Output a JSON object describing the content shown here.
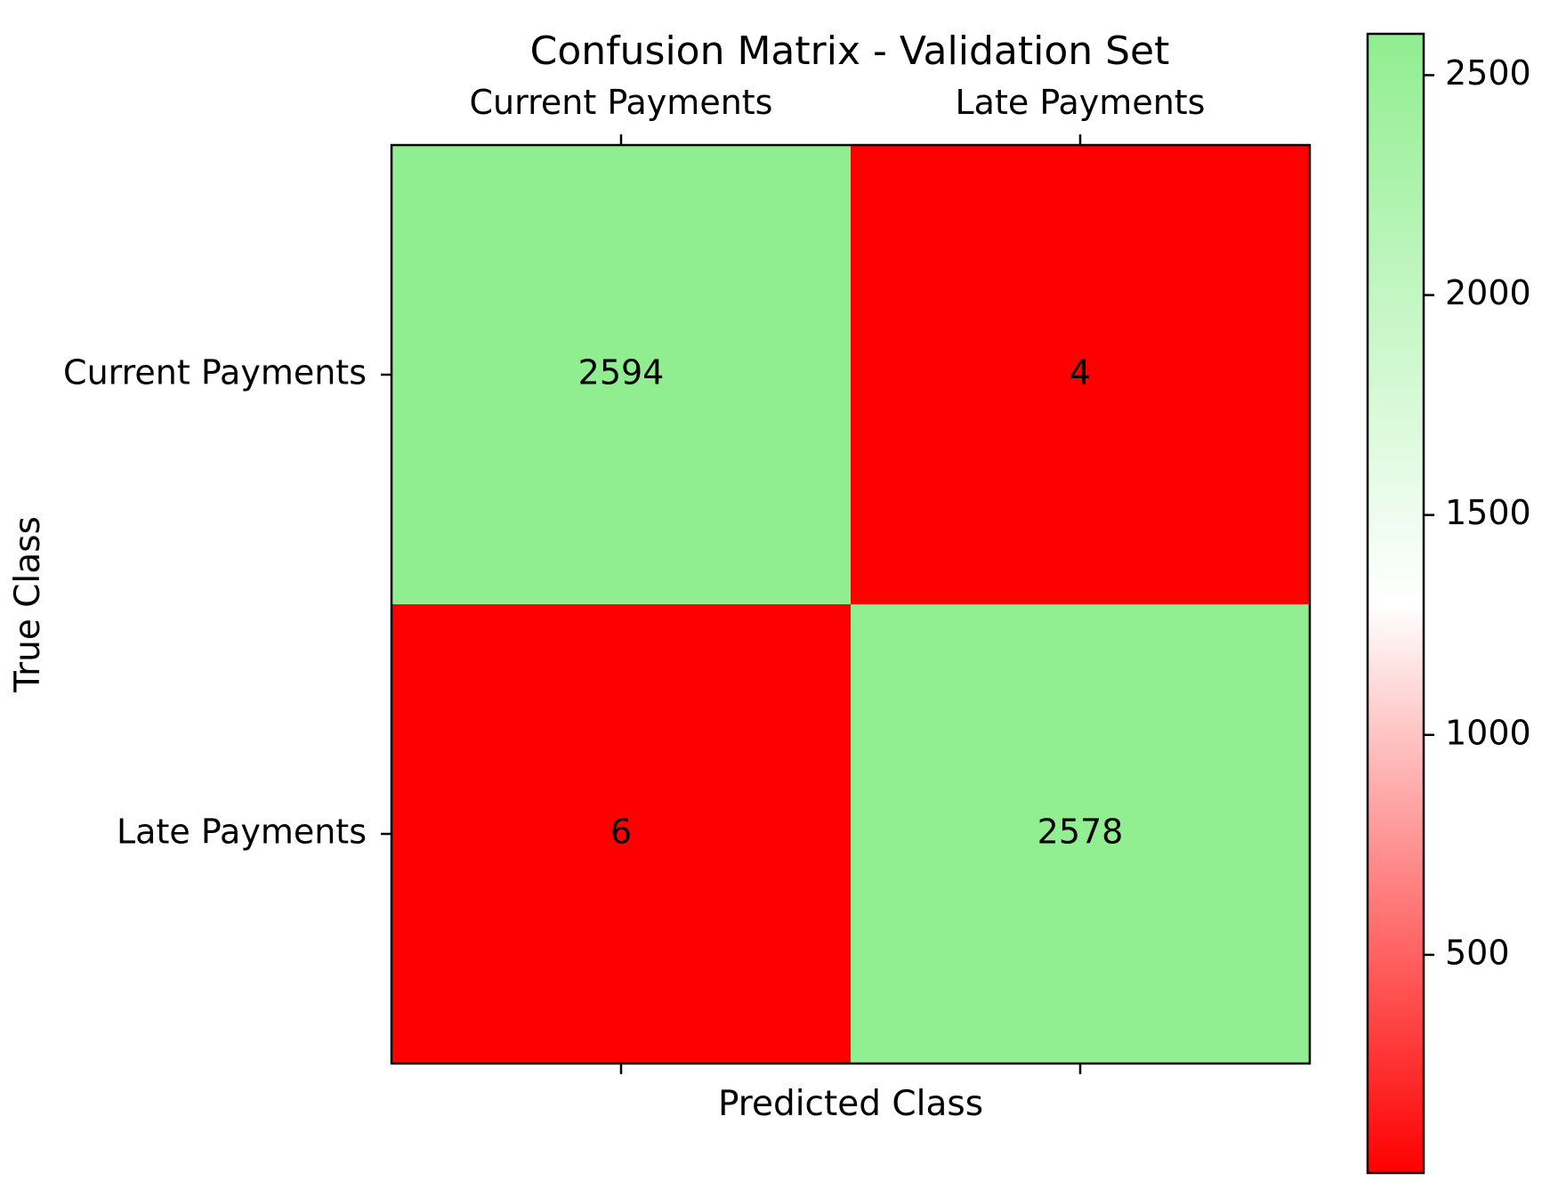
{
  "chart_data": {
    "type": "heatmap",
    "title": "Confusion Matrix - Validation Set",
    "xlabel": "Predicted Class",
    "ylabel": "True Class",
    "x_categories": [
      "Current Payments",
      "Late Payments"
    ],
    "y_categories": [
      "Current Payments",
      "Late Payments"
    ],
    "values": [
      [
        2594,
        4
      ],
      [
        6,
        2578
      ]
    ],
    "colorbar": {
      "min": 4,
      "max": 2594,
      "ticks": [
        500,
        1000,
        1500,
        2000,
        2500
      ],
      "colors": {
        "low": "#ff0000",
        "mid": "#ffffff",
        "high": "#90ee90"
      }
    },
    "x_tick_position": "top"
  }
}
